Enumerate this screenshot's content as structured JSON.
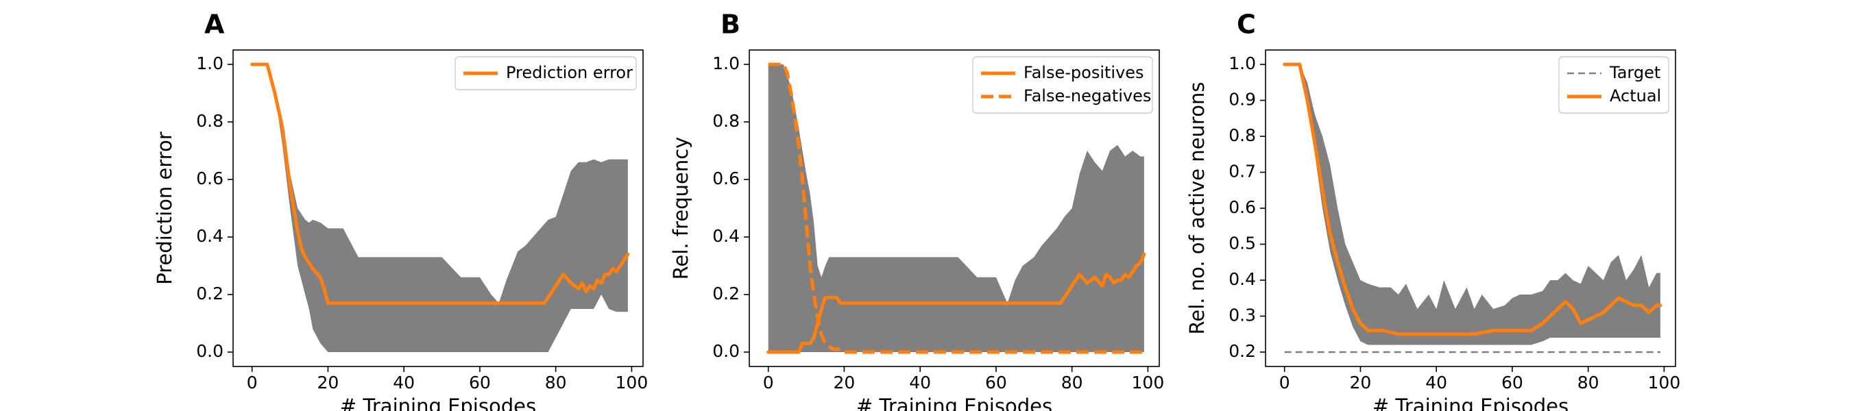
{
  "panels": [
    {
      "letter": "A",
      "chart_data": {
        "type": "line",
        "title": "",
        "xlabel": "# Training Episodes",
        "ylabel": "Prediction error",
        "xlim": [
          -5,
          103
        ],
        "ylim": [
          -0.05,
          1.05
        ],
        "xticks": [
          "0",
          "20",
          "40",
          "60",
          "80",
          "100"
        ],
        "yticks": [
          "0.0",
          "0.2",
          "0.4",
          "0.6",
          "0.8",
          "1.0"
        ],
        "legend_position": "top-right",
        "grid": false,
        "band_color": "#808080",
        "series": [
          {
            "name": "Prediction error",
            "style": "solid",
            "color": "#ff7f0e",
            "x": [
              0,
              4,
              6,
              8,
              9,
              10,
              11,
              12,
              13,
              14,
              15,
              16,
              18,
              19,
              20,
              22,
              30,
              40,
              50,
              60,
              70,
              77,
              78,
              80,
              82,
              84,
              85,
              86,
              87,
              88,
              89,
              90,
              91,
              92,
              93,
              94,
              95,
              96,
              97,
              98,
              99
            ],
            "y": [
              1.0,
              1.0,
              0.9,
              0.78,
              0.68,
              0.58,
              0.5,
              0.42,
              0.36,
              0.33,
              0.31,
              0.29,
              0.26,
              0.22,
              0.17,
              0.17,
              0.17,
              0.17,
              0.17,
              0.17,
              0.17,
              0.17,
              0.19,
              0.23,
              0.27,
              0.24,
              0.23,
              0.22,
              0.24,
              0.21,
              0.23,
              0.22,
              0.25,
              0.24,
              0.27,
              0.27,
              0.29,
              0.28,
              0.3,
              0.32,
              0.34
            ]
          }
        ],
        "band": {
          "x": [
            0,
            4,
            6,
            8,
            10,
            12,
            14,
            15,
            16,
            18,
            20,
            22,
            24,
            26,
            28,
            30,
            35,
            40,
            45,
            50,
            55,
            60,
            63,
            65,
            67,
            70,
            72,
            74,
            76,
            78,
            80,
            82,
            84,
            86,
            88,
            90,
            92,
            94,
            96,
            98,
            99
          ],
          "lower": [
            1.0,
            1.0,
            0.9,
            0.72,
            0.5,
            0.3,
            0.2,
            0.15,
            0.08,
            0.03,
            0.0,
            0.0,
            0.0,
            0.0,
            0.0,
            0.0,
            0.0,
            0.0,
            0.0,
            0.0,
            0.0,
            0.0,
            0.0,
            0.0,
            0.0,
            0.0,
            0.0,
            0.0,
            0.0,
            0.0,
            0.05,
            0.1,
            0.15,
            0.15,
            0.15,
            0.15,
            0.2,
            0.15,
            0.14,
            0.14,
            0.14
          ],
          "upper": [
            1.0,
            1.0,
            0.9,
            0.78,
            0.62,
            0.5,
            0.46,
            0.45,
            0.46,
            0.45,
            0.43,
            0.43,
            0.43,
            0.38,
            0.33,
            0.33,
            0.33,
            0.33,
            0.33,
            0.33,
            0.26,
            0.26,
            0.2,
            0.17,
            0.25,
            0.35,
            0.37,
            0.4,
            0.43,
            0.46,
            0.47,
            0.55,
            0.63,
            0.66,
            0.66,
            0.67,
            0.66,
            0.67,
            0.67,
            0.67,
            0.67
          ]
        }
      }
    },
    {
      "letter": "B",
      "chart_data": {
        "type": "line",
        "title": "",
        "xlabel": "# Training Episodes",
        "ylabel": "Rel. frequency",
        "xlim": [
          -5,
          103
        ],
        "ylim": [
          -0.05,
          1.05
        ],
        "xticks": [
          "0",
          "20",
          "40",
          "60",
          "80",
          "100"
        ],
        "yticks": [
          "0.0",
          "0.2",
          "0.4",
          "0.6",
          "0.8",
          "1.0"
        ],
        "legend_position": "top-right",
        "grid": false,
        "band_color": "#808080",
        "series": [
          {
            "name": "False-positives",
            "style": "solid",
            "color": "#ff7f0e",
            "x": [
              0,
              8,
              9,
              10,
              11,
              12,
              13,
              14,
              15,
              16,
              17,
              18,
              19,
              20,
              22,
              30,
              40,
              50,
              60,
              70,
              77,
              78,
              80,
              82,
              84,
              86,
              88,
              89,
              90,
              91,
              92,
              93,
              94,
              95,
              96,
              97,
              98,
              99
            ],
            "y": [
              0.0,
              0.0,
              0.03,
              0.03,
              0.03,
              0.05,
              0.1,
              0.15,
              0.19,
              0.19,
              0.19,
              0.19,
              0.17,
              0.17,
              0.17,
              0.17,
              0.17,
              0.17,
              0.17,
              0.17,
              0.17,
              0.19,
              0.23,
              0.27,
              0.24,
              0.26,
              0.23,
              0.27,
              0.26,
              0.24,
              0.25,
              0.25,
              0.27,
              0.26,
              0.28,
              0.3,
              0.31,
              0.34
            ]
          },
          {
            "name": "False-negatives",
            "style": "dashed",
            "color": "#ff7f0e",
            "x": [
              0,
              4,
              5,
              6,
              7,
              8,
              9,
              10,
              11,
              12,
              13,
              14,
              15,
              16,
              17,
              18,
              19,
              20,
              22,
              30,
              40,
              50,
              60,
              70,
              80,
              90,
              99
            ],
            "y": [
              1.0,
              1.0,
              0.97,
              0.9,
              0.82,
              0.72,
              0.6,
              0.45,
              0.3,
              0.2,
              0.12,
              0.06,
              0.03,
              0.02,
              0.01,
              0.01,
              0.01,
              0.0,
              0.0,
              0.0,
              0.0,
              0.0,
              0.0,
              0.0,
              0.0,
              0.0,
              0.0
            ]
          }
        ],
        "band": {
          "x": [
            0,
            4,
            6,
            7,
            8,
            9,
            10,
            11,
            12,
            13,
            14,
            15,
            16,
            18,
            20,
            25,
            30,
            35,
            40,
            45,
            50,
            55,
            60,
            63,
            65,
            67,
            70,
            72,
            74,
            76,
            78,
            80,
            82,
            84,
            86,
            88,
            90,
            92,
            94,
            96,
            98,
            99
          ],
          "lower": [
            0.0,
            0.0,
            0.0,
            0.0,
            0.0,
            0.0,
            0.0,
            0.0,
            0.0,
            0.0,
            0.0,
            0.0,
            0.0,
            0.0,
            0.0,
            0.0,
            0.0,
            0.0,
            0.0,
            0.0,
            0.0,
            0.0,
            0.0,
            0.0,
            0.0,
            0.0,
            0.0,
            0.0,
            0.0,
            0.0,
            0.0,
            0.0,
            0.0,
            0.0,
            0.0,
            0.0,
            0.0,
            0.0,
            0.0,
            0.0,
            0.0,
            0.0
          ],
          "upper": [
            1.0,
            1.0,
            0.92,
            0.85,
            0.78,
            0.7,
            0.62,
            0.55,
            0.45,
            0.3,
            0.26,
            0.3,
            0.33,
            0.33,
            0.33,
            0.33,
            0.33,
            0.33,
            0.33,
            0.33,
            0.33,
            0.26,
            0.26,
            0.17,
            0.25,
            0.3,
            0.33,
            0.37,
            0.4,
            0.43,
            0.47,
            0.5,
            0.62,
            0.7,
            0.66,
            0.63,
            0.7,
            0.72,
            0.68,
            0.7,
            0.68,
            0.68
          ]
        }
      }
    },
    {
      "letter": "C",
      "chart_data": {
        "type": "line",
        "title": "",
        "xlabel": "# Training Episodes",
        "ylabel": "Rel. no. of active neurons",
        "xlim": [
          -5,
          103
        ],
        "ylim": [
          0.16,
          1.04
        ],
        "xticks": [
          "0",
          "20",
          "40",
          "60",
          "80",
          "100"
        ],
        "yticks": [
          "0.2",
          "0.3",
          "0.4",
          "0.5",
          "0.6",
          "0.7",
          "0.8",
          "0.9",
          "1.0"
        ],
        "legend_position": "top-right",
        "grid": false,
        "band_color": "#808080",
        "series": [
          {
            "name": "Target",
            "style": "dashed",
            "color": "#7f7f7f",
            "x": [
              0,
              99
            ],
            "y": [
              0.2,
              0.2
            ]
          },
          {
            "name": "Actual",
            "style": "solid",
            "color": "#ff7f0e",
            "x": [
              0,
              4,
              6,
              8,
              10,
              12,
              14,
              16,
              18,
              20,
              22,
              26,
              30,
              35,
              40,
              45,
              50,
              55,
              60,
              65,
              68,
              70,
              72,
              74,
              76,
              78,
              80,
              82,
              84,
              86,
              88,
              90,
              92,
              94,
              96,
              98,
              99
            ],
            "y": [
              1.0,
              1.0,
              0.9,
              0.78,
              0.65,
              0.53,
              0.45,
              0.38,
              0.32,
              0.28,
              0.26,
              0.26,
              0.25,
              0.25,
              0.25,
              0.25,
              0.25,
              0.26,
              0.26,
              0.26,
              0.28,
              0.3,
              0.32,
              0.34,
              0.32,
              0.28,
              0.29,
              0.3,
              0.31,
              0.33,
              0.35,
              0.34,
              0.33,
              0.33,
              0.31,
              0.33,
              0.33
            ]
          }
        ],
        "band": {
          "x": [
            0,
            4,
            6,
            8,
            10,
            12,
            14,
            16,
            18,
            20,
            22,
            25,
            28,
            30,
            32,
            35,
            38,
            40,
            42,
            45,
            48,
            50,
            52,
            55,
            58,
            60,
            62,
            65,
            68,
            70,
            72,
            74,
            76,
            78,
            80,
            82,
            84,
            86,
            88,
            90,
            92,
            94,
            96,
            98,
            99
          ],
          "lower": [
            1.0,
            1.0,
            0.88,
            0.75,
            0.6,
            0.48,
            0.4,
            0.33,
            0.27,
            0.23,
            0.22,
            0.22,
            0.22,
            0.22,
            0.22,
            0.22,
            0.22,
            0.22,
            0.22,
            0.22,
            0.22,
            0.22,
            0.22,
            0.22,
            0.22,
            0.22,
            0.22,
            0.22,
            0.23,
            0.24,
            0.24,
            0.24,
            0.24,
            0.24,
            0.24,
            0.24,
            0.24,
            0.24,
            0.24,
            0.24,
            0.24,
            0.24,
            0.24,
            0.24,
            0.24
          ],
          "upper": [
            1.0,
            1.0,
            0.95,
            0.86,
            0.8,
            0.72,
            0.6,
            0.5,
            0.45,
            0.4,
            0.39,
            0.38,
            0.38,
            0.36,
            0.39,
            0.32,
            0.36,
            0.32,
            0.4,
            0.32,
            0.38,
            0.32,
            0.36,
            0.32,
            0.33,
            0.35,
            0.36,
            0.36,
            0.37,
            0.4,
            0.4,
            0.42,
            0.4,
            0.39,
            0.44,
            0.42,
            0.4,
            0.45,
            0.47,
            0.4,
            0.43,
            0.47,
            0.38,
            0.42,
            0.42
          ]
        }
      }
    }
  ]
}
